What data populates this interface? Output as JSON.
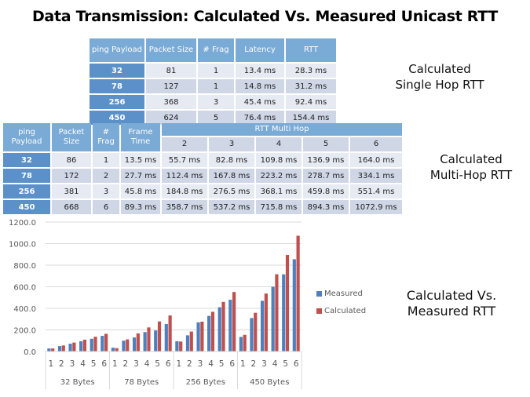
{
  "title": "Data Transmission: Calculated Vs. Measured Unicast RTT",
  "single_hop_table": {
    "headers": [
      "ping Payload",
      "Packet Size",
      "# Frag",
      "Latency",
      "RTT"
    ],
    "rows": [
      [
        "32",
        "81",
        "1",
        "13.4 ms",
        "28.3 ms"
      ],
      [
        "78",
        "127",
        "1",
        "14.8 ms",
        "31.2 ms"
      ],
      [
        "256",
        "368",
        "3",
        "45.4 ms",
        "92.4 ms"
      ],
      [
        "450",
        "624",
        "5",
        "76.4 ms",
        "154.4 ms"
      ]
    ],
    "caption": [
      "Calculated",
      "Single Hop RTT"
    ]
  },
  "multi_hop_table": {
    "headers": [
      "ping Payload",
      "Packet Size",
      "# Frag",
      "Frame Time"
    ],
    "group_header": "RTT Multi Hop",
    "hop_headers": [
      "2",
      "3",
      "4",
      "5",
      "6"
    ],
    "rows": [
      [
        "32",
        "86",
        "1",
        "13.5 ms",
        "55.7 ms",
        "82.8 ms",
        "109.8 ms",
        "136.9 ms",
        "164.0 ms"
      ],
      [
        "78",
        "172",
        "2",
        "27.7 ms",
        "112.4 ms",
        "167.8 ms",
        "223.2 ms",
        "278.7 ms",
        "334.1 ms"
      ],
      [
        "256",
        "381",
        "3",
        "45.8 ms",
        "184.8 ms",
        "276.5 ms",
        "368.1 ms",
        "459.8 ms",
        "551.4 ms"
      ],
      [
        "450",
        "668",
        "6",
        "89.3 ms",
        "358.7 ms",
        "537.2 ms",
        "715.8 ms",
        "894.3 ms",
        "1072.9 ms"
      ]
    ],
    "caption": [
      "Calculated",
      "Multi-Hop RTT"
    ]
  },
  "chart_caption": [
    "Calculated Vs.",
    "Measured RTT"
  ],
  "chart_data": {
    "type": "bar",
    "title": "",
    "xlabel": "",
    "ylabel": "",
    "ylim": [
      0,
      1200
    ],
    "yticks": [
      "0.0",
      "200.0",
      "400.0",
      "600.0",
      "800.0",
      "1000.0",
      "1200.0"
    ],
    "grid": true,
    "legend_position": "right",
    "groups": [
      "32 Bytes",
      "78 Bytes",
      "256 Bytes",
      "450 Bytes"
    ],
    "categories": [
      "1",
      "2",
      "3",
      "4",
      "5",
      "6"
    ],
    "series": [
      {
        "name": "Measured",
        "color": "#4f7fbc",
        "values": [
          [
            28,
            50,
            72,
            95,
            118,
            145
          ],
          [
            35,
            100,
            130,
            180,
            195,
            255
          ],
          [
            95,
            150,
            270,
            330,
            410,
            480
          ],
          [
            135,
            310,
            470,
            600,
            715,
            855
          ]
        ]
      },
      {
        "name": "Calculated",
        "color": "#c0504d",
        "values": [
          [
            28.3,
            55.7,
            82.8,
            109.8,
            136.9,
            164.0
          ],
          [
            31.2,
            112.4,
            167.8,
            223.2,
            278.7,
            334.1
          ],
          [
            92.4,
            184.8,
            276.5,
            368.1,
            459.8,
            551.4
          ],
          [
            154.4,
            358.7,
            537.2,
            715.8,
            894.3,
            1072.9
          ]
        ]
      }
    ]
  }
}
